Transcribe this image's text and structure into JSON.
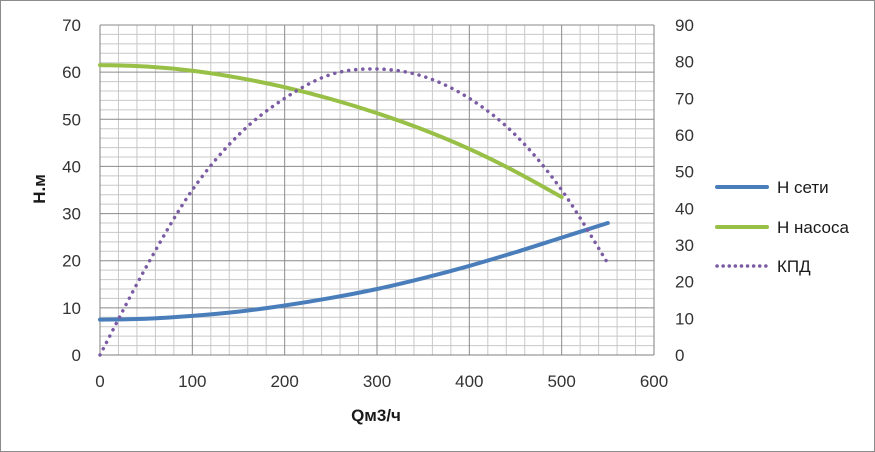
{
  "chart_data": {
    "type": "line",
    "title": "",
    "xlabel": "Qм3/ч",
    "ylabel": "Н.м",
    "xlim": [
      0,
      600
    ],
    "ylim": [
      0,
      70
    ],
    "y2lim": [
      0,
      90
    ],
    "xticks": [
      0,
      100,
      200,
      300,
      400,
      500,
      600
    ],
    "yticks": [
      0,
      10,
      20,
      30,
      40,
      50,
      60,
      70
    ],
    "y2ticks": [
      0,
      10,
      20,
      30,
      40,
      50,
      60,
      70,
      80,
      90
    ],
    "grid": true,
    "legend_position": "right",
    "series": [
      {
        "name": "Н сети",
        "axis": "left",
        "color": "#4a7ebb",
        "style": "solid",
        "x": [
          0,
          50,
          100,
          150,
          200,
          250,
          300,
          350,
          400,
          450,
          500,
          550
        ],
        "y": [
          7.5,
          7.7,
          8.3,
          9.2,
          10.5,
          12.1,
          14.0,
          16.3,
          18.9,
          21.8,
          24.9,
          28.0
        ]
      },
      {
        "name": "Н насоса",
        "axis": "left",
        "color": "#98c047",
        "style": "solid",
        "x": [
          0,
          50,
          100,
          150,
          200,
          250,
          300,
          350,
          400,
          450,
          500
        ],
        "y": [
          61.5,
          61.2,
          60.3,
          58.8,
          56.8,
          54.3,
          51.3,
          47.8,
          43.7,
          38.9,
          33.5
        ]
      },
      {
        "name": "КПД",
        "axis": "right",
        "color": "#7b5ca4",
        "style": "dotted",
        "x": [
          0,
          50,
          100,
          150,
          200,
          250,
          300,
          350,
          400,
          450,
          500,
          550
        ],
        "y": [
          0,
          24,
          45,
          60,
          70,
          76.5,
          78,
          76,
          70,
          60,
          45,
          25
        ]
      }
    ]
  }
}
